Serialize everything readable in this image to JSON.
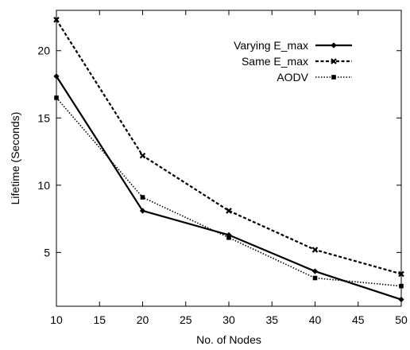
{
  "chart_data": {
    "type": "line",
    "xlabel": "No. of Nodes",
    "ylabel": "Lifetime (Seconds)",
    "xlim": [
      10,
      50
    ],
    "ylim": [
      1,
      23
    ],
    "xticks": [
      10,
      15,
      20,
      25,
      30,
      35,
      40,
      45,
      50
    ],
    "yticks": [
      5,
      10,
      15,
      20
    ],
    "grid": false,
    "legend_position": "top-right",
    "x": [
      10,
      20,
      30,
      40,
      50
    ],
    "series": [
      {
        "name": "Varying E_max",
        "values": [
          18.1,
          8.1,
          6.3,
          3.6,
          1.5
        ],
        "line_style": "solid",
        "marker": "diamond"
      },
      {
        "name": "Same E_max",
        "values": [
          22.3,
          12.2,
          8.1,
          5.2,
          3.4
        ],
        "line_style": "dashed",
        "marker": "x"
      },
      {
        "name": "AODV",
        "values": [
          16.5,
          9.1,
          6.1,
          3.1,
          2.5
        ],
        "line_style": "dotted",
        "marker": "square"
      }
    ]
  }
}
